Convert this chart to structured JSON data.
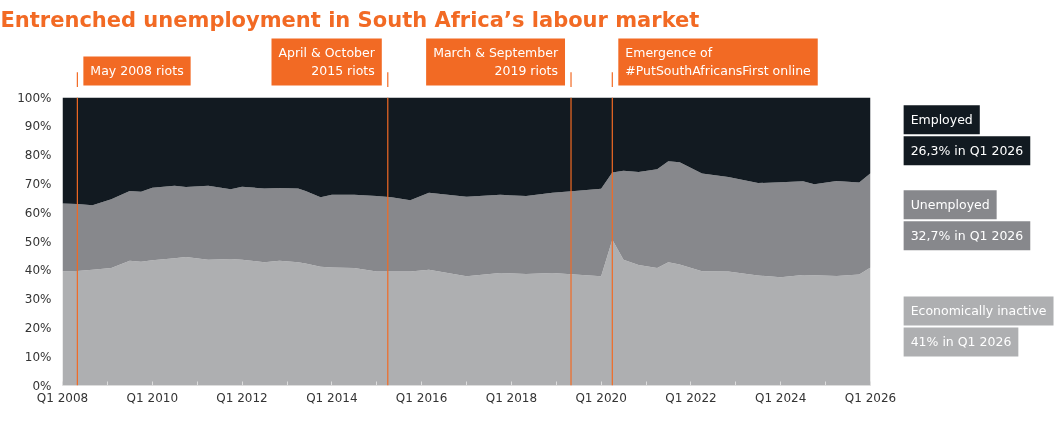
{
  "chart_data": {
    "type": "area",
    "stacked": true,
    "title": "Entrenched unemployment in South Africa’s labour market",
    "x": [
      "2008-01",
      "2008-05",
      "2008-09",
      "2009-02",
      "2009-07",
      "2009-10",
      "2010-01",
      "2010-07",
      "2010-10",
      "2011-04",
      "2011-10",
      "2012-01",
      "2012-07",
      "2012-11",
      "2013-04",
      "2013-06",
      "2013-10",
      "2014-01",
      "2014-07",
      "2015-01",
      "2015-05",
      "2015-10",
      "2016-03",
      "2017-01",
      "2017-10",
      "2018-05",
      "2018-12",
      "2019-06",
      "2020-01",
      "2020-04",
      "2020-07",
      "2020-11",
      "2021-04",
      "2021-07",
      "2021-10",
      "2022-04",
      "2022-11",
      "2023-07",
      "2024-01",
      "2024-07",
      "2024-10",
      "2025-04",
      "2025-10",
      "2026-01"
    ],
    "series": [
      {
        "name": "Economically inactive",
        "color": "#aeafb1",
        "values": [
          39.7,
          39.8,
          40.2,
          40.8,
          43.3,
          43.0,
          43.5,
          44.2,
          44.6,
          43.7,
          43.9,
          43.7,
          42.8,
          43.3,
          42.8,
          42.4,
          41.2,
          41.0,
          40.8,
          39.6,
          39.6,
          39.6,
          40.2,
          37.9,
          39.1,
          38.7,
          39.1,
          38.5,
          37.9,
          50.6,
          43.7,
          41.8,
          40.8,
          42.8,
          42.0,
          39.7,
          39.6,
          38.2,
          37.6,
          38.4,
          38.3,
          38.0,
          38.5,
          41.0
        ]
      },
      {
        "name": "Unemployed",
        "color": "#87888c",
        "values": [
          23.5,
          23.2,
          22.4,
          23.9,
          24.2,
          24.3,
          25.2,
          25.2,
          24.3,
          25.7,
          24.2,
          25.3,
          25.6,
          25.3,
          25.6,
          25.1,
          24.2,
          25.2,
          25.4,
          26.2,
          25.8,
          24.7,
          26.7,
          27.6,
          27.1,
          27.1,
          27.8,
          29.0,
          30.4,
          23.4,
          30.9,
          32.3,
          34.3,
          35.1,
          35.5,
          33.9,
          32.8,
          32.1,
          33.0,
          32.5,
          31.6,
          33.0,
          32.0,
          32.7
        ]
      },
      {
        "name": "Employed",
        "color": "#121a21",
        "values": [
          36.8,
          37.0,
          37.4,
          35.3,
          32.5,
          32.7,
          31.3,
          30.6,
          31.1,
          30.6,
          31.9,
          31.0,
          31.6,
          31.4,
          31.6,
          32.5,
          34.6,
          33.8,
          33.8,
          34.2,
          34.6,
          35.7,
          33.1,
          34.5,
          33.8,
          34.2,
          33.1,
          32.5,
          31.7,
          26.0,
          25.4,
          25.9,
          24.9,
          22.1,
          22.5,
          26.4,
          27.6,
          29.7,
          29.4,
          29.1,
          30.1,
          29.0,
          29.5,
          26.3
        ]
      }
    ],
    "annotations": [
      "41% in Q1 2026",
      "32,7% in Q1 2026",
      "26,3% in Q1 2026"
    ],
    "ref_lines": [
      {
        "axis": "x",
        "value": "2008-05",
        "label": "May 2008 riots",
        "color": "#f26a24"
      },
      {
        "axis": "x",
        "value": "2015-04",
        "label": "April & October\n2015 riots",
        "color": "#f26a24"
      },
      {
        "axis": "x",
        "value": "2019-05",
        "label": "March & September\n2019 riots",
        "color": "#f26a24"
      },
      {
        "axis": "x",
        "value": "2020-04",
        "label": "Emergence of\n#PutSouthAfricansFirst online",
        "color": "#f26a24"
      }
    ],
    "xlim": [
      "2008-01",
      "2026-01"
    ],
    "xticks": [
      {
        "value": "2008-01",
        "label": "Q1 2008"
      },
      {
        "value": "2009-01",
        "label": null
      },
      {
        "value": "2010-01",
        "label": "Q1 2010"
      },
      {
        "value": "2011-01",
        "label": null
      },
      {
        "value": "2012-01",
        "label": "Q1 2012"
      },
      {
        "value": "2013-01",
        "label": null
      },
      {
        "value": "2014-01",
        "label": "Q1 2014"
      },
      {
        "value": "2015-01",
        "label": null
      },
      {
        "value": "2016-01",
        "label": "Q1 2016"
      },
      {
        "value": "2017-01",
        "label": null
      },
      {
        "value": "2018-01",
        "label": "Q1 2018"
      },
      {
        "value": "2019-01",
        "label": null
      },
      {
        "value": "2020-01",
        "label": "Q1 2020"
      },
      {
        "value": "2021-01",
        "label": null
      },
      {
        "value": "2022-01",
        "label": "Q1 2022"
      },
      {
        "value": "2023-01",
        "label": null
      },
      {
        "value": "2024-01",
        "label": "Q1 2024"
      },
      {
        "value": "2025-01",
        "label": null
      },
      {
        "value": "2026-01",
        "label": "Q1 2026"
      }
    ],
    "ylim": [
      0,
      100
    ],
    "yticks": [
      {
        "value": 0,
        "label": "0%"
      },
      {
        "value": 10,
        "label": "10%"
      },
      {
        "value": 20,
        "label": "20%"
      },
      {
        "value": 30,
        "label": "30%"
      },
      {
        "value": 40,
        "label": "40%"
      },
      {
        "value": 50,
        "label": "50%"
      },
      {
        "value": 60,
        "label": "60%"
      },
      {
        "value": 70,
        "label": "70%"
      },
      {
        "value": 80,
        "label": "80%"
      },
      {
        "value": 90,
        "label": "90%"
      },
      {
        "value": 100,
        "label": "100%"
      }
    ],
    "grid": false
  }
}
